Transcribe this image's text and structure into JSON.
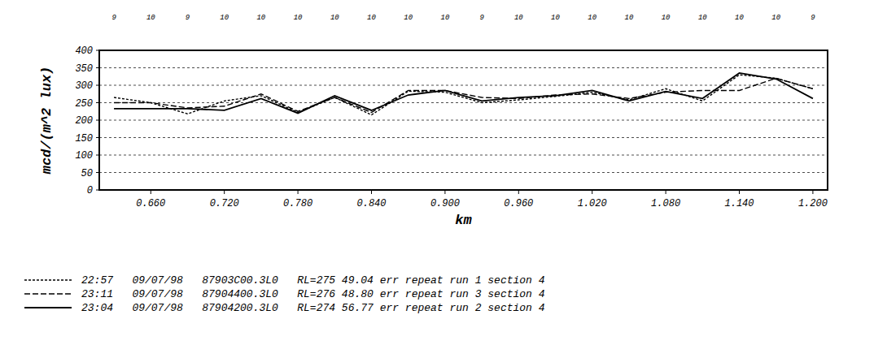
{
  "chart_data": {
    "type": "line",
    "x_label": "km",
    "y_label": "mcd/(m^2 lux)",
    "x": [
      0.63,
      0.66,
      0.69,
      0.72,
      0.75,
      0.78,
      0.81,
      0.84,
      0.87,
      0.9,
      0.93,
      0.96,
      0.99,
      1.02,
      1.05,
      1.08,
      1.11,
      1.14,
      1.17,
      1.2
    ],
    "counts": [
      9,
      10,
      9,
      10,
      10,
      10,
      10,
      10,
      10,
      10,
      9,
      10,
      10,
      10,
      10,
      10,
      10,
      10,
      10,
      9
    ],
    "series": [
      {
        "name": "22:57   09/07/98   87903C00.3L0   RL=275 49.04 err repeat run 1 section 4",
        "color": "#000000",
        "line_style": "dotted",
        "values": [
          265,
          250,
          218,
          255,
          270,
          222,
          265,
          215,
          283,
          280,
          250,
          258,
          268,
          280,
          258,
          290,
          255,
          330,
          320,
          290
        ]
      },
      {
        "name": "23:11   09/07/98   87904400.3L0   RL=276 48.80 err repeat run 3 section 4",
        "color": "#000000",
        "line_style": "dashed",
        "values": [
          250,
          250,
          235,
          240,
          275,
          225,
          265,
          222,
          285,
          285,
          265,
          262,
          272,
          275,
          262,
          280,
          285,
          285,
          320,
          290
        ]
      },
      {
        "name": "23:04   09/07/98   87904200.3L0   RL=274 56.77 err repeat run 2 section 4",
        "color": "#000000",
        "line_style": "solid",
        "values": [
          233,
          233,
          233,
          228,
          262,
          220,
          270,
          228,
          272,
          285,
          255,
          265,
          270,
          285,
          255,
          282,
          262,
          335,
          318,
          262
        ]
      }
    ],
    "xlim": [
      0.618,
      1.212
    ],
    "xticks": [
      {
        "value": 0.66,
        "label": "0.660"
      },
      {
        "value": 0.72,
        "label": "0.720"
      },
      {
        "value": 0.78,
        "label": "0.780"
      },
      {
        "value": 0.84,
        "label": "0.840"
      },
      {
        "value": 0.9,
        "label": "0.900"
      },
      {
        "value": 0.96,
        "label": "0.960"
      },
      {
        "value": 1.02,
        "label": "1.020"
      },
      {
        "value": 1.08,
        "label": "1.080"
      },
      {
        "value": 1.14,
        "label": "1.140"
      },
      {
        "value": 1.2,
        "label": "1.200"
      }
    ],
    "ylim": [
      0,
      400
    ],
    "yticks": [
      0,
      50,
      100,
      150,
      200,
      250,
      300,
      350,
      400
    ],
    "grid": true,
    "legend": "bottom left"
  }
}
